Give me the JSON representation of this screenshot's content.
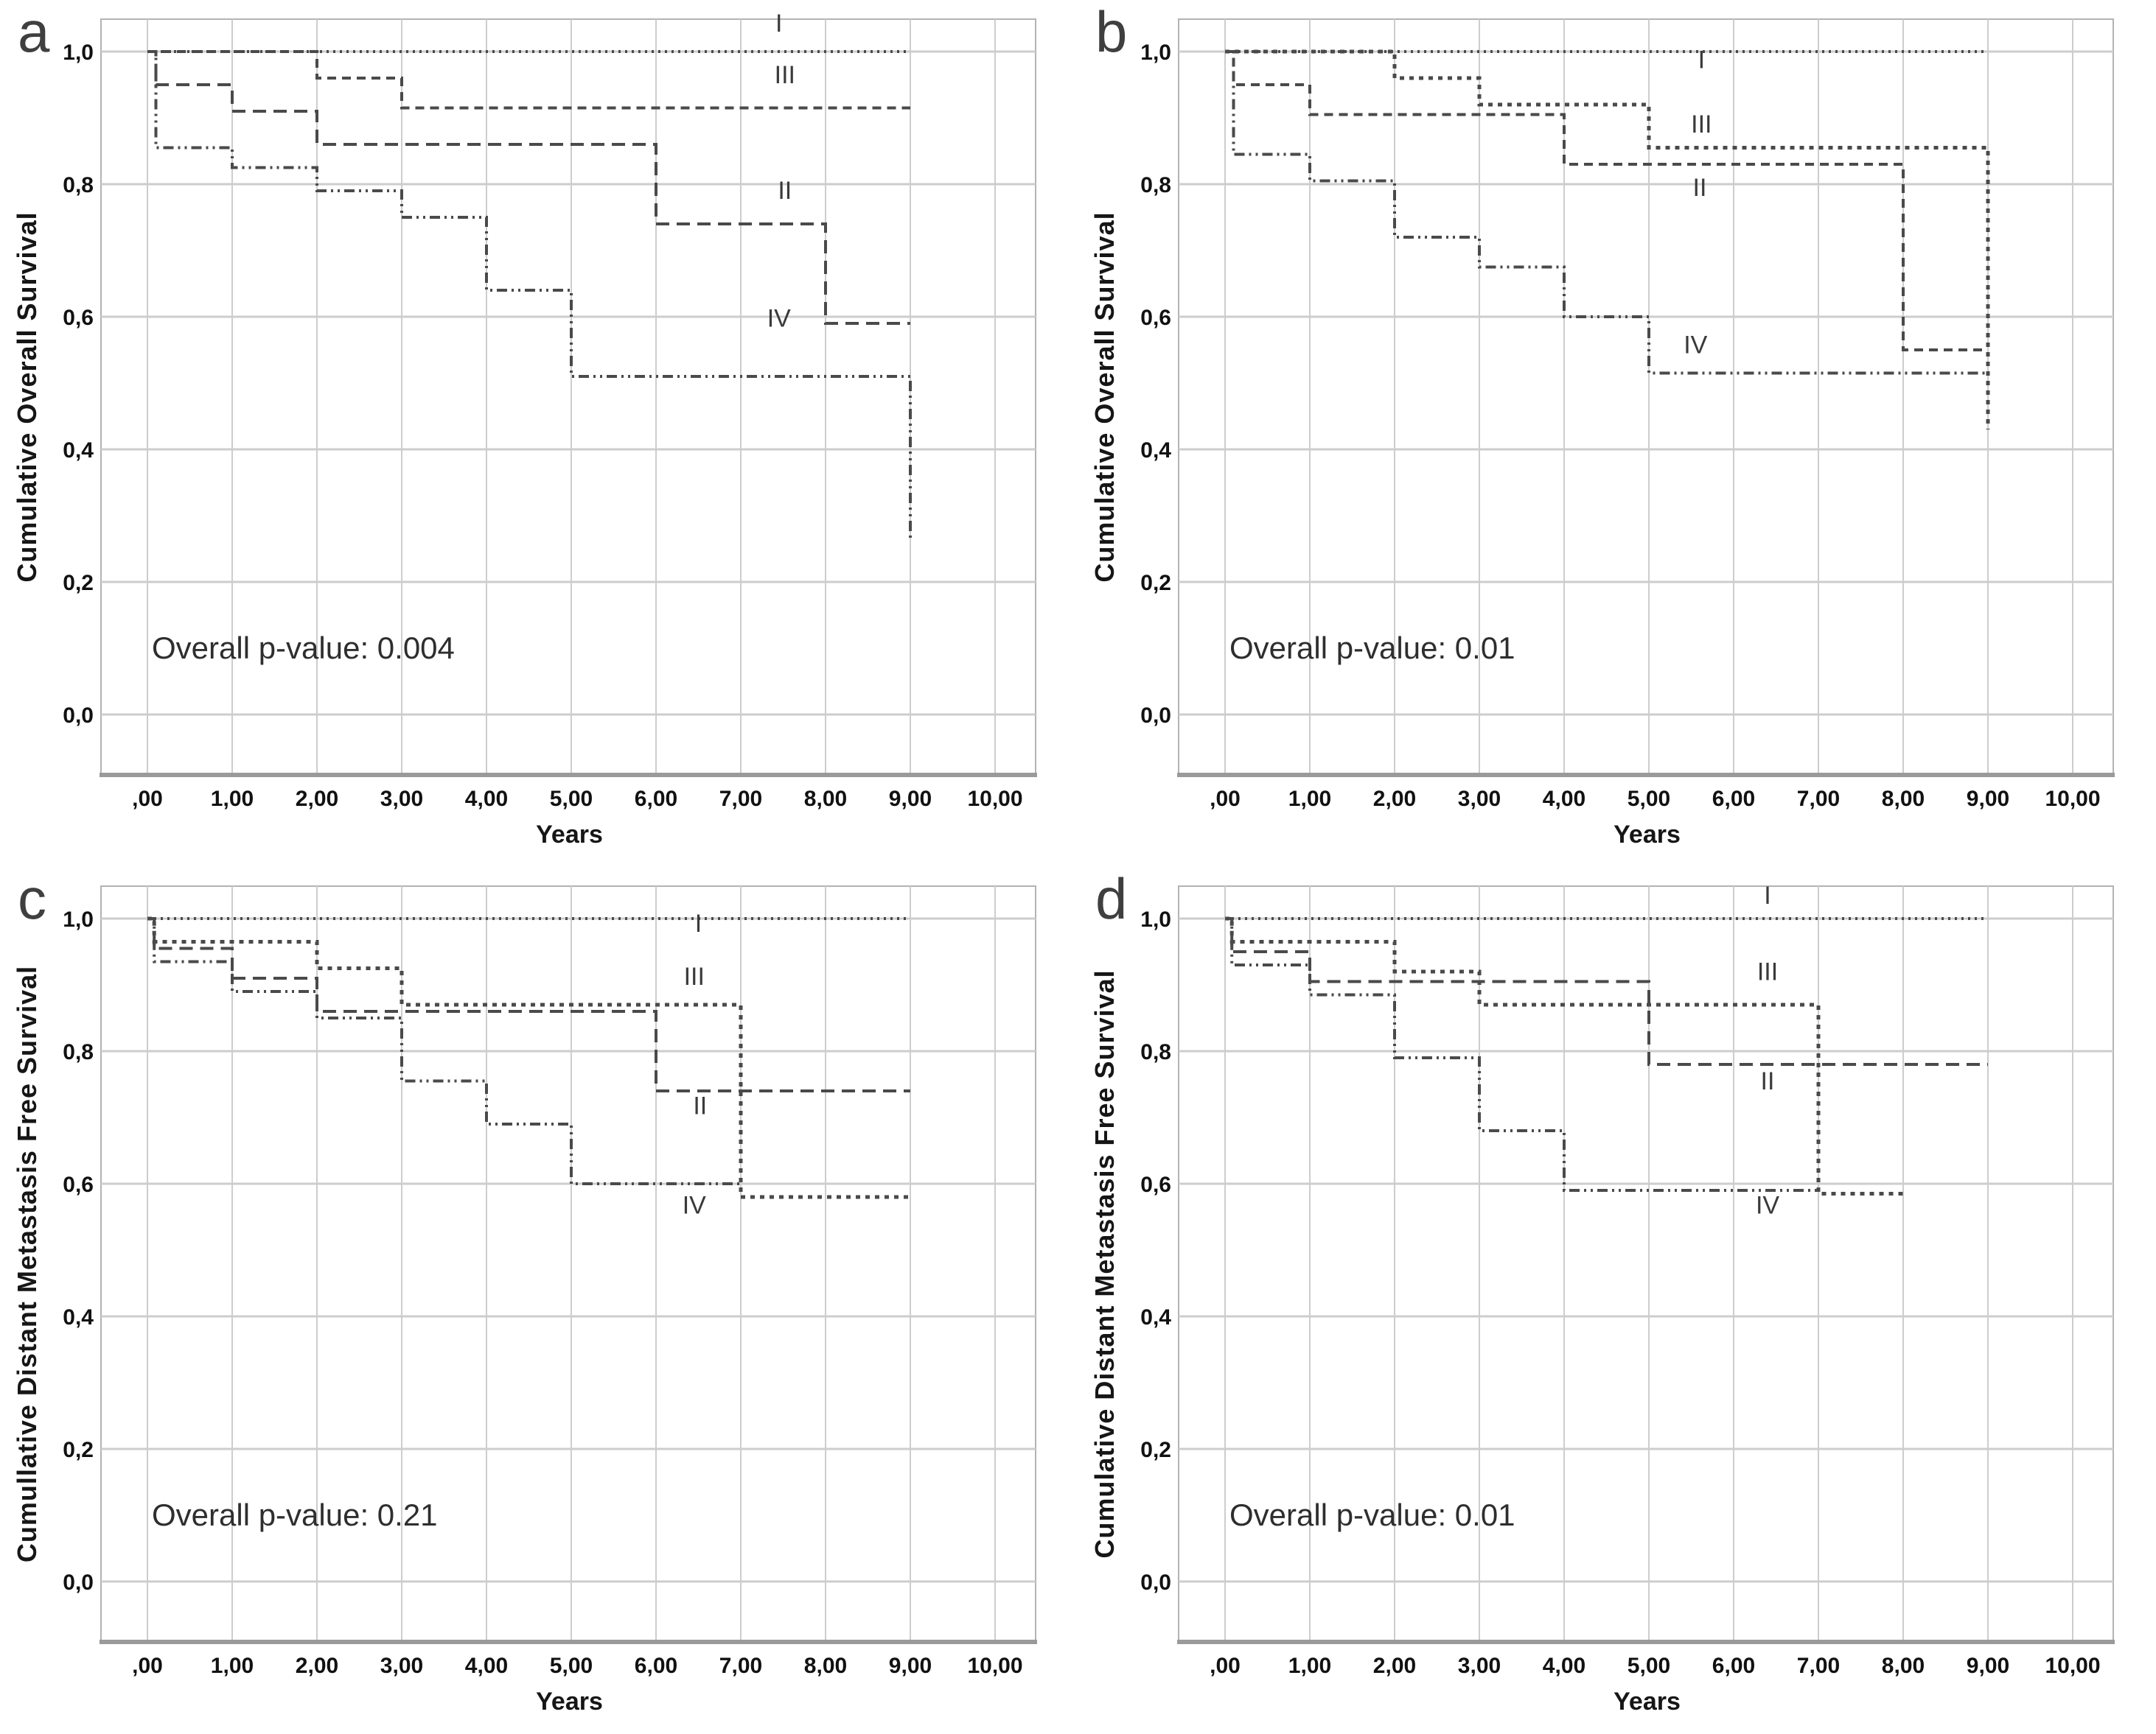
{
  "figure": {
    "description_colors": {
      "curve": "#4a4a4a",
      "grid_line": "#cdcdcd",
      "frame": "#b3b3b3",
      "bottom_axis": "#9a9a9a",
      "tick_text": "#111111",
      "series_label_text": "#3a3a3a"
    }
  },
  "chart_data": [
    {
      "panel_letter": "a",
      "type": "line",
      "subtype": "kaplan_meier_step",
      "xlabel": "Years",
      "ylabel": "Cumulative Overall Survival",
      "annotation": "Overall p-value: 0.004",
      "x_tick_labels": [
        ",00",
        "1,00",
        "2,00",
        "3,00",
        "4,00",
        "5,00",
        "6,00",
        "7,00",
        "8,00",
        "9,00",
        "10,00"
      ],
      "x_tick_values": [
        0,
        1,
        2,
        3,
        4,
        5,
        6,
        7,
        8,
        9,
        10
      ],
      "y_tick_labels": [
        "0,0",
        "0,2",
        "0,4",
        "0,6",
        "0,8",
        "1,0"
      ],
      "y_tick_values": [
        0,
        0.2,
        0.4,
        0.6,
        0.8,
        1.0
      ],
      "xlim": [
        -0.55,
        10.55
      ],
      "ylim": [
        -0.09,
        1.05
      ],
      "grid": true,
      "legend_position": "inline-curve-labels",
      "series": [
        {
          "name": "IV",
          "style": "dash-dot-dot",
          "label_x": 7.45,
          "label_y": 0.585,
          "steps": [
            [
              0,
              1
            ],
            [
              0.1,
              1
            ],
            [
              0.1,
              0.855
            ],
            [
              1,
              0.855
            ],
            [
              1,
              0.825
            ],
            [
              2,
              0.825
            ],
            [
              2,
              0.79
            ],
            [
              3,
              0.79
            ],
            [
              3,
              0.75
            ],
            [
              4,
              0.75
            ],
            [
              4,
              0.64
            ],
            [
              5,
              0.64
            ],
            [
              5,
              0.51
            ],
            [
              9,
              0.51
            ],
            [
              9,
              0.26
            ]
          ]
        },
        {
          "name": "II",
          "style": "long-dash",
          "label_x": 7.52,
          "label_y": 0.778,
          "steps": [
            [
              0,
              1
            ],
            [
              0.1,
              1
            ],
            [
              0.1,
              0.95
            ],
            [
              1,
              0.95
            ],
            [
              1,
              0.91
            ],
            [
              2,
              0.91
            ],
            [
              2,
              0.86
            ],
            [
              6,
              0.86
            ],
            [
              6,
              0.74
            ],
            [
              8,
              0.74
            ],
            [
              8,
              0.59
            ],
            [
              9,
              0.59
            ]
          ]
        },
        {
          "name": "III",
          "style": "medium-dash",
          "label_x": 7.52,
          "label_y": 0.952,
          "steps": [
            [
              0,
              1
            ],
            [
              2,
              1
            ],
            [
              2,
              0.96
            ],
            [
              3,
              0.96
            ],
            [
              3,
              0.915
            ],
            [
              9,
              0.915
            ]
          ]
        },
        {
          "name": "I",
          "style": "fine-dot",
          "label_x": 7.45,
          "label_y": 1.03,
          "steps": [
            [
              0,
              1
            ],
            [
              9,
              1
            ]
          ]
        }
      ]
    },
    {
      "panel_letter": "b",
      "type": "line",
      "subtype": "kaplan_meier_step",
      "xlabel": "Years",
      "ylabel": "Cumulative Overall Survival",
      "annotation": "Overall p-value: 0.01",
      "x_tick_labels": [
        ",00",
        "1,00",
        "2,00",
        "3,00",
        "4,00",
        "5,00",
        "6,00",
        "7,00",
        "8,00",
        "9,00",
        "10,00"
      ],
      "x_tick_values": [
        0,
        1,
        2,
        3,
        4,
        5,
        6,
        7,
        8,
        9,
        10
      ],
      "y_tick_labels": [
        "0,0",
        "0,2",
        "0,4",
        "0,6",
        "0,8",
        "1,0"
      ],
      "y_tick_values": [
        0,
        0.2,
        0.4,
        0.6,
        0.8,
        1.0
      ],
      "xlim": [
        -0.55,
        10.55
      ],
      "ylim": [
        -0.09,
        1.05
      ],
      "grid": true,
      "legend_position": "inline-curve-labels",
      "series": [
        {
          "name": "IV",
          "style": "dash-dot-dot",
          "label_x": 5.55,
          "label_y": 0.545,
          "steps": [
            [
              0,
              1
            ],
            [
              0.1,
              1
            ],
            [
              0.1,
              0.845
            ],
            [
              1,
              0.845
            ],
            [
              1,
              0.805
            ],
            [
              2,
              0.805
            ],
            [
              2,
              0.72
            ],
            [
              3,
              0.72
            ],
            [
              3,
              0.675
            ],
            [
              4,
              0.675
            ],
            [
              4,
              0.6
            ],
            [
              5,
              0.6
            ],
            [
              5,
              0.515
            ],
            [
              9,
              0.515
            ]
          ]
        },
        {
          "name": "II",
          "style": "medium-dash",
          "label_x": 5.6,
          "label_y": 0.782,
          "steps": [
            [
              0,
              1
            ],
            [
              0.1,
              1
            ],
            [
              0.1,
              0.95
            ],
            [
              1,
              0.95
            ],
            [
              1,
              0.905
            ],
            [
              4,
              0.905
            ],
            [
              4,
              0.83
            ],
            [
              8,
              0.83
            ],
            [
              8,
              0.55
            ],
            [
              9,
              0.55
            ]
          ]
        },
        {
          "name": "III",
          "style": "square-dot",
          "label_x": 5.62,
          "label_y": 0.878,
          "steps": [
            [
              0,
              1
            ],
            [
              2,
              1
            ],
            [
              2,
              0.96
            ],
            [
              3,
              0.96
            ],
            [
              3,
              0.92
            ],
            [
              5,
              0.92
            ],
            [
              5,
              0.855
            ],
            [
              9,
              0.855
            ],
            [
              9,
              0.43
            ]
          ]
        },
        {
          "name": "I",
          "style": "fine-dot",
          "label_x": 5.62,
          "label_y": 0.975,
          "steps": [
            [
              0,
              1
            ],
            [
              9,
              1
            ]
          ]
        }
      ]
    },
    {
      "panel_letter": "c",
      "type": "line",
      "subtype": "kaplan_meier_step",
      "xlabel": "Years",
      "ylabel": "Cumullative Distant Metastasis Free Survival",
      "annotation": "Overall p-value: 0.21",
      "x_tick_labels": [
        ",00",
        "1,00",
        "2,00",
        "3,00",
        "4,00",
        "5,00",
        "6,00",
        "7,00",
        "8,00",
        "9,00",
        "10,00"
      ],
      "x_tick_values": [
        0,
        1,
        2,
        3,
        4,
        5,
        6,
        7,
        8,
        9,
        10
      ],
      "y_tick_labels": [
        "0,0",
        "0,2",
        "0,4",
        "0,6",
        "0,8",
        "1,0"
      ],
      "y_tick_values": [
        0,
        0.2,
        0.4,
        0.6,
        0.8,
        1.0
      ],
      "xlim": [
        -0.55,
        10.55
      ],
      "ylim": [
        -0.09,
        1.05
      ],
      "grid": true,
      "legend_position": "inline-curve-labels",
      "series": [
        {
          "name": "IV",
          "style": "dash-dot-dot",
          "label_x": 6.45,
          "label_y": 0.555,
          "steps": [
            [
              0,
              1
            ],
            [
              0.08,
              1
            ],
            [
              0.08,
              0.935
            ],
            [
              1,
              0.935
            ],
            [
              1,
              0.89
            ],
            [
              2,
              0.89
            ],
            [
              2,
              0.85
            ],
            [
              3,
              0.85
            ],
            [
              3,
              0.755
            ],
            [
              4,
              0.755
            ],
            [
              4,
              0.69
            ],
            [
              5,
              0.69
            ],
            [
              5,
              0.6
            ],
            [
              7,
              0.6
            ]
          ]
        },
        {
          "name": "II",
          "style": "long-dash",
          "label_x": 6.52,
          "label_y": 0.705,
          "steps": [
            [
              0,
              1
            ],
            [
              0.08,
              1
            ],
            [
              0.08,
              0.955
            ],
            [
              1,
              0.955
            ],
            [
              1,
              0.91
            ],
            [
              2,
              0.91
            ],
            [
              2,
              0.86
            ],
            [
              6,
              0.86
            ],
            [
              6,
              0.74
            ],
            [
              9,
              0.74
            ]
          ]
        },
        {
          "name": "III",
          "style": "square-dot",
          "label_x": 6.45,
          "label_y": 0.9,
          "steps": [
            [
              0,
              1
            ],
            [
              0.08,
              1
            ],
            [
              0.08,
              0.965
            ],
            [
              2,
              0.965
            ],
            [
              2,
              0.925
            ],
            [
              3,
              0.925
            ],
            [
              3,
              0.87
            ],
            [
              7,
              0.87
            ],
            [
              7,
              0.58
            ],
            [
              9,
              0.58
            ]
          ]
        },
        {
          "name": "I",
          "style": "fine-dot",
          "label_x": 6.5,
          "label_y": 0.98,
          "steps": [
            [
              0,
              1
            ],
            [
              9,
              1
            ]
          ]
        }
      ]
    },
    {
      "panel_letter": "d",
      "type": "line",
      "subtype": "kaplan_meier_step",
      "xlabel": "Years",
      "ylabel": "Cumulative Distant Metastasis Free Survival",
      "annotation": "Overall p-value: 0.01",
      "x_tick_labels": [
        ",00",
        "1,00",
        "2,00",
        "3,00",
        "4,00",
        "5,00",
        "6,00",
        "7,00",
        "8,00",
        "9,00",
        "10,00"
      ],
      "x_tick_values": [
        0,
        1,
        2,
        3,
        4,
        5,
        6,
        7,
        8,
        9,
        10
      ],
      "y_tick_labels": [
        "0,0",
        "0,2",
        "0,4",
        "0,6",
        "0,8",
        "1,0"
      ],
      "y_tick_values": [
        0,
        0.2,
        0.4,
        0.6,
        0.8,
        1.0
      ],
      "xlim": [
        -0.55,
        10.55
      ],
      "ylim": [
        -0.09,
        1.05
      ],
      "grid": true,
      "legend_position": "inline-curve-labels",
      "series": [
        {
          "name": "IV",
          "style": "dash-dot-dot",
          "label_x": 6.4,
          "label_y": 0.555,
          "steps": [
            [
              0,
              1
            ],
            [
              0.08,
              1
            ],
            [
              0.08,
              0.93
            ],
            [
              1,
              0.93
            ],
            [
              1,
              0.885
            ],
            [
              2,
              0.885
            ],
            [
              2,
              0.79
            ],
            [
              3,
              0.79
            ],
            [
              3,
              0.68
            ],
            [
              4,
              0.68
            ],
            [
              4,
              0.59
            ],
            [
              7,
              0.59
            ]
          ]
        },
        {
          "name": "II",
          "style": "long-dash",
          "label_x": 6.4,
          "label_y": 0.742,
          "steps": [
            [
              0,
              1
            ],
            [
              0.08,
              1
            ],
            [
              0.08,
              0.95
            ],
            [
              1,
              0.95
            ],
            [
              1,
              0.905
            ],
            [
              5,
              0.905
            ],
            [
              5,
              0.78
            ],
            [
              9,
              0.78
            ]
          ]
        },
        {
          "name": "III",
          "style": "square-dot",
          "label_x": 6.4,
          "label_y": 0.907,
          "steps": [
            [
              0,
              1
            ],
            [
              0.08,
              1
            ],
            [
              0.08,
              0.965
            ],
            [
              2,
              0.965
            ],
            [
              2,
              0.92
            ],
            [
              3,
              0.92
            ],
            [
              3,
              0.87
            ],
            [
              7,
              0.87
            ],
            [
              7,
              0.585
            ],
            [
              8,
              0.585
            ]
          ]
        },
        {
          "name": "I",
          "style": "fine-dot",
          "label_x": 6.4,
          "label_y": 1.022,
          "steps": [
            [
              0,
              1
            ],
            [
              9,
              1
            ]
          ]
        }
      ]
    }
  ]
}
